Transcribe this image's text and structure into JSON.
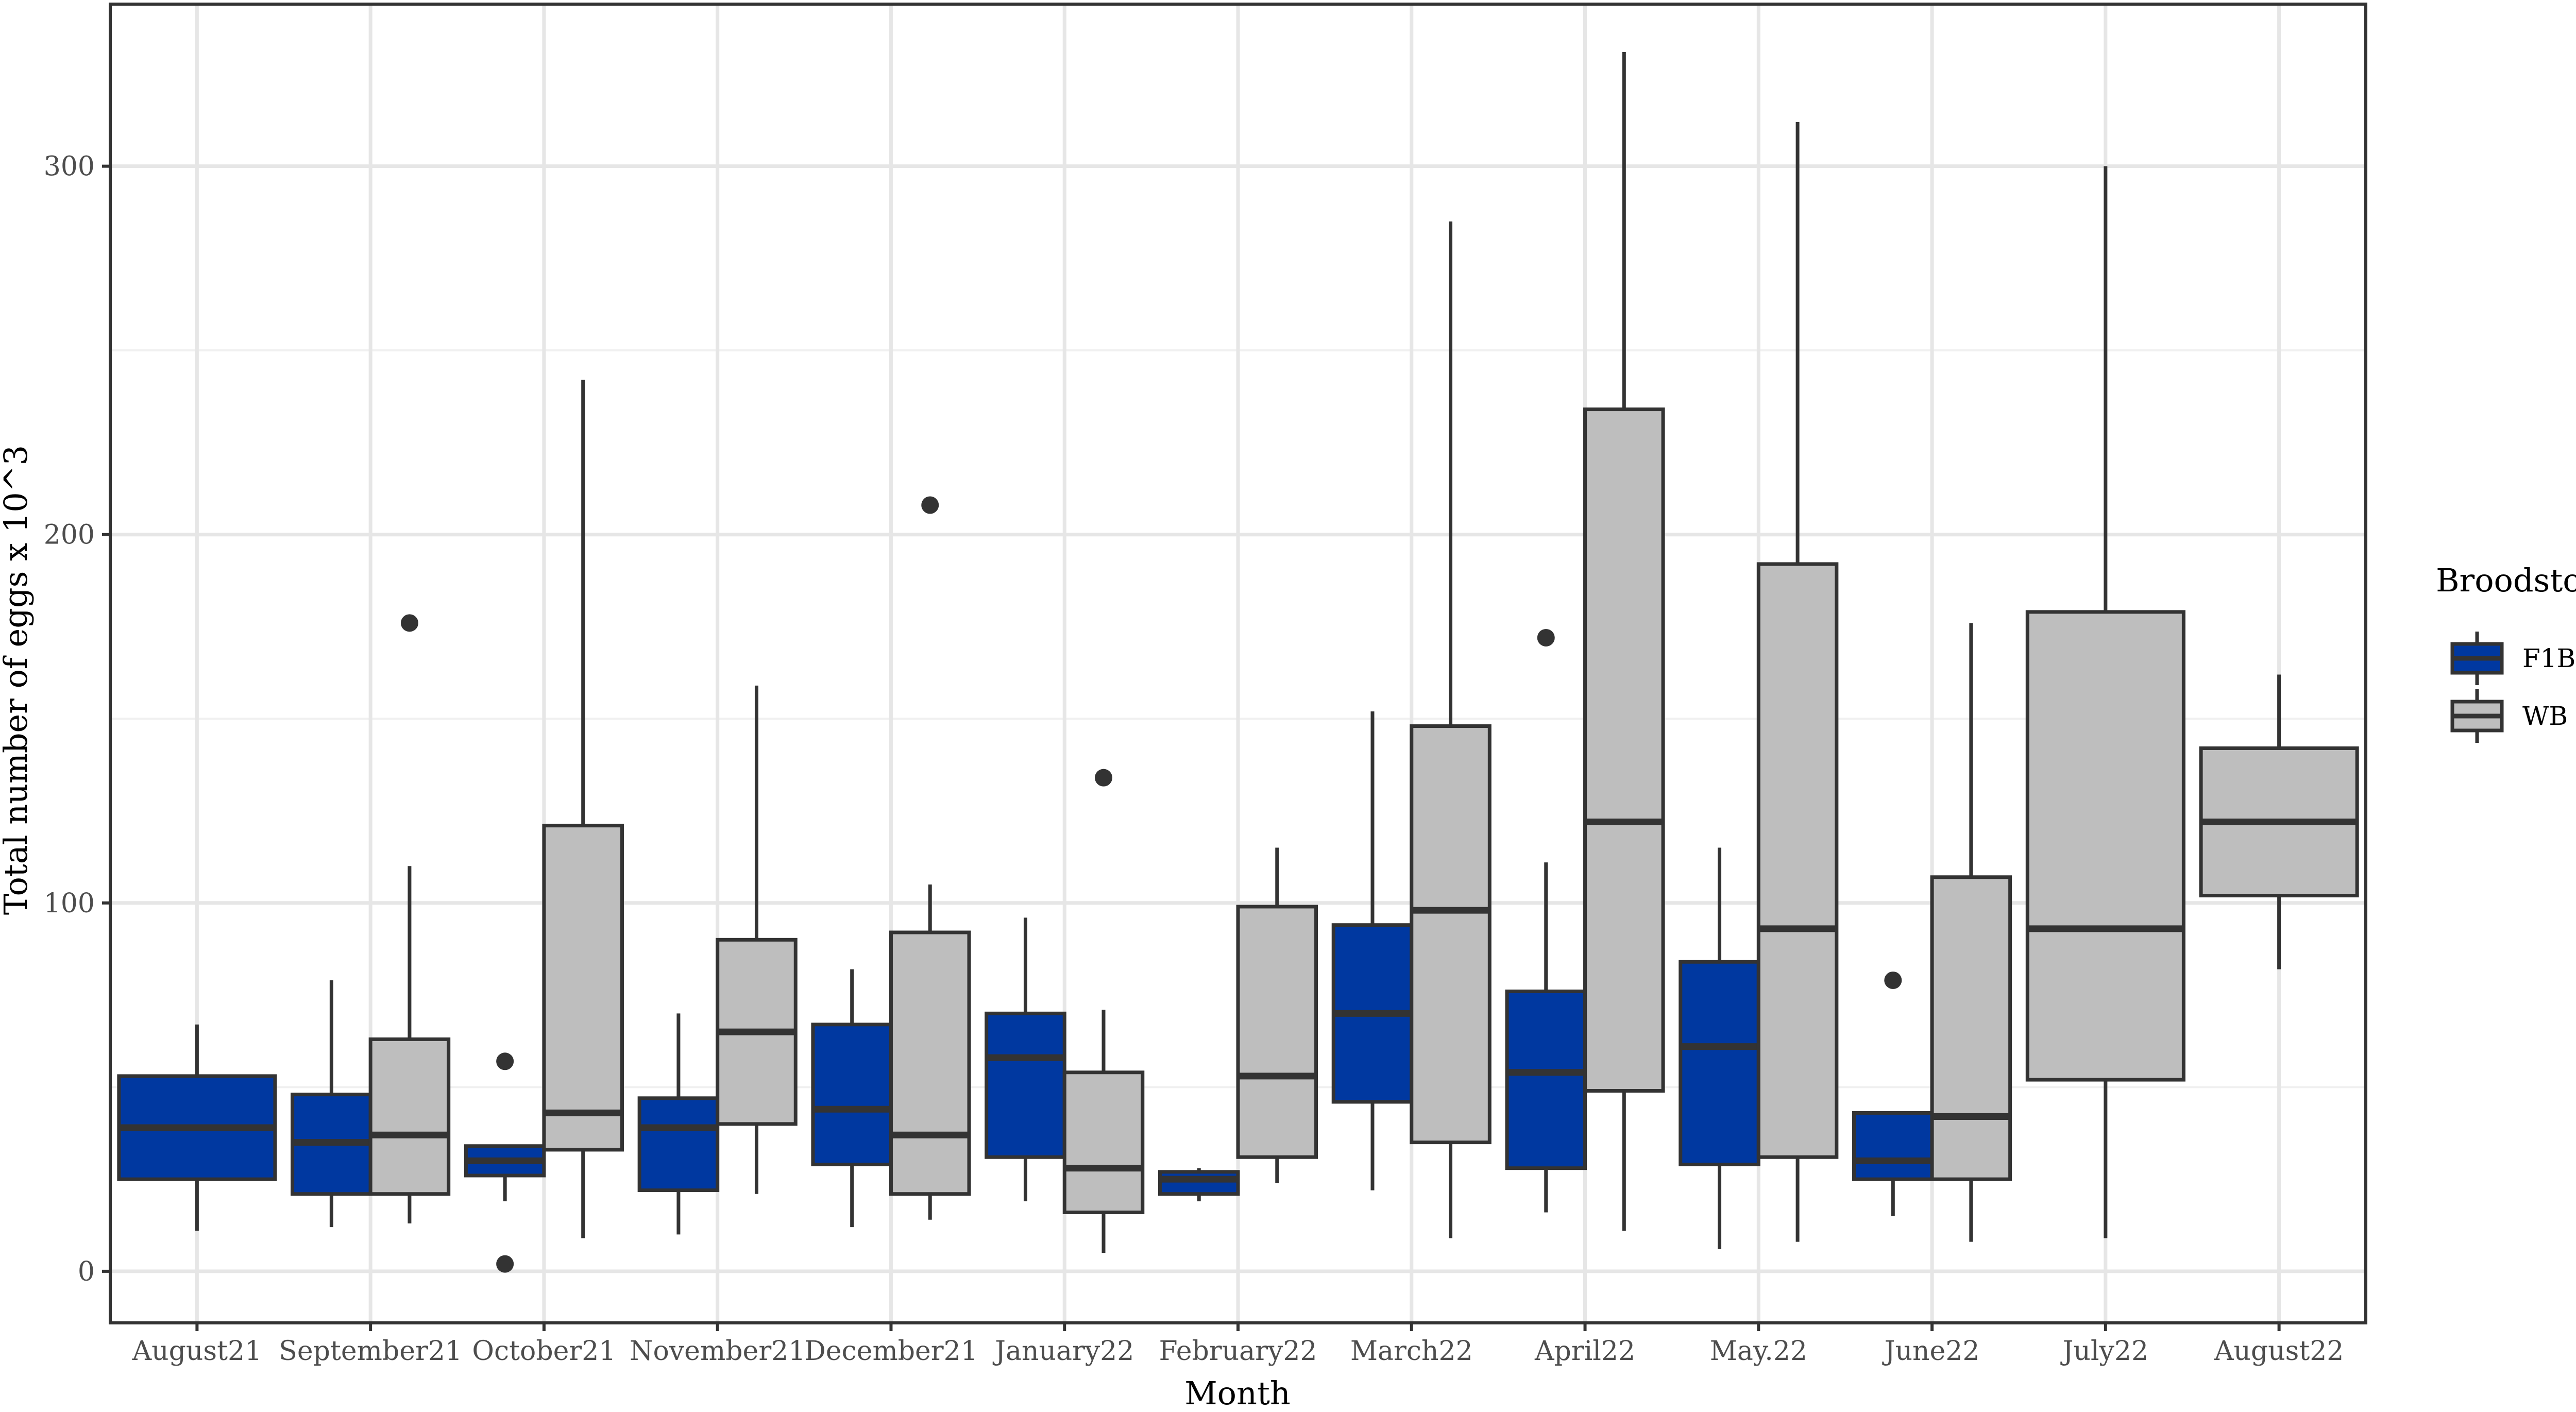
{
  "chart_data": {
    "type": "box",
    "title": "",
    "xlabel": "Month",
    "ylabel": "Total number of eggs x 10^3",
    "ylim": [
      -14,
      344
    ],
    "yticks": [
      0,
      100,
      200,
      300
    ],
    "categories": [
      "August21",
      "September21",
      "October21",
      "November21",
      "December21",
      "January22",
      "February22",
      "March22",
      "April22",
      "May.22",
      "June22",
      "July22",
      "August22"
    ],
    "legend": {
      "title": "Broodstock",
      "position": "right",
      "entries": [
        {
          "label": "F1B",
          "color": "#0038a0"
        },
        {
          "label": "WB",
          "color": "#bebebe"
        }
      ]
    },
    "series": [
      {
        "name": "F1B",
        "color": "#0038a0",
        "boxes": [
          {
            "category": "August21",
            "low": 11,
            "q1": 25,
            "median": 39,
            "q3": 53,
            "high": 67,
            "outliers": []
          },
          {
            "category": "September21",
            "low": 12,
            "q1": 21,
            "median": 35,
            "q3": 48,
            "high": 79,
            "outliers": []
          },
          {
            "category": "October21",
            "low": 19,
            "q1": 26,
            "median": 30,
            "q3": 34,
            "high": 34,
            "outliers": [
              2,
              57
            ]
          },
          {
            "category": "November21",
            "low": 10,
            "q1": 22,
            "median": 39,
            "q3": 47,
            "high": 70,
            "outliers": []
          },
          {
            "category": "December21",
            "low": 12,
            "q1": 29,
            "median": 44,
            "q3": 67,
            "high": 82,
            "outliers": []
          },
          {
            "category": "January22",
            "low": 19,
            "q1": 31,
            "median": 58,
            "q3": 70,
            "high": 96,
            "outliers": []
          },
          {
            "category": "February22",
            "low": 19,
            "q1": 21,
            "median": 25,
            "q3": 27,
            "high": 28,
            "outliers": []
          },
          {
            "category": "March22",
            "low": 22,
            "q1": 46,
            "median": 70,
            "q3": 94,
            "high": 152,
            "outliers": []
          },
          {
            "category": "April22",
            "low": 16,
            "q1": 28,
            "median": 54,
            "q3": 76,
            "high": 111,
            "outliers": [
              172
            ]
          },
          {
            "category": "May.22",
            "low": 6,
            "q1": 29,
            "median": 61,
            "q3": 84,
            "high": 115,
            "outliers": []
          },
          {
            "category": "June22",
            "low": 15,
            "q1": 25,
            "median": 30,
            "q3": 43,
            "high": 43,
            "outliers": [
              79
            ]
          }
        ]
      },
      {
        "name": "WB",
        "color": "#bebebe",
        "boxes": [
          {
            "category": "September21",
            "low": 13,
            "q1": 21,
            "median": 37,
            "q3": 63,
            "high": 110,
            "outliers": [
              176
            ]
          },
          {
            "category": "October21",
            "low": 9,
            "q1": 33,
            "median": 43,
            "q3": 121,
            "high": 242,
            "outliers": []
          },
          {
            "category": "November21",
            "low": 21,
            "q1": 40,
            "median": 65,
            "q3": 90,
            "high": 159,
            "outliers": []
          },
          {
            "category": "December21",
            "low": 14,
            "q1": 21,
            "median": 37,
            "q3": 92,
            "high": 105,
            "outliers": [
              208
            ]
          },
          {
            "category": "January22",
            "low": 5,
            "q1": 16,
            "median": 28,
            "q3": 54,
            "high": 71,
            "outliers": [
              134
            ]
          },
          {
            "category": "February22",
            "low": 24,
            "q1": 31,
            "median": 53,
            "q3": 99,
            "high": 115,
            "outliers": []
          },
          {
            "category": "March22",
            "low": 9,
            "q1": 35,
            "median": 98,
            "q3": 148,
            "high": 285,
            "outliers": []
          },
          {
            "category": "April22",
            "low": 11,
            "q1": 49,
            "median": 122,
            "q3": 234,
            "high": 331,
            "outliers": []
          },
          {
            "category": "May.22",
            "low": 8,
            "q1": 31,
            "median": 93,
            "q3": 192,
            "high": 312,
            "outliers": []
          },
          {
            "category": "June22",
            "low": 8,
            "q1": 25,
            "median": 42,
            "q3": 107,
            "high": 176,
            "outliers": []
          },
          {
            "category": "July22",
            "low": 9,
            "q1": 52,
            "median": 93,
            "q3": 179,
            "high": 300,
            "outliers": []
          },
          {
            "category": "August22",
            "low": 82,
            "q1": 102,
            "median": 122,
            "q3": 142,
            "high": 162,
            "outliers": []
          }
        ]
      }
    ]
  }
}
